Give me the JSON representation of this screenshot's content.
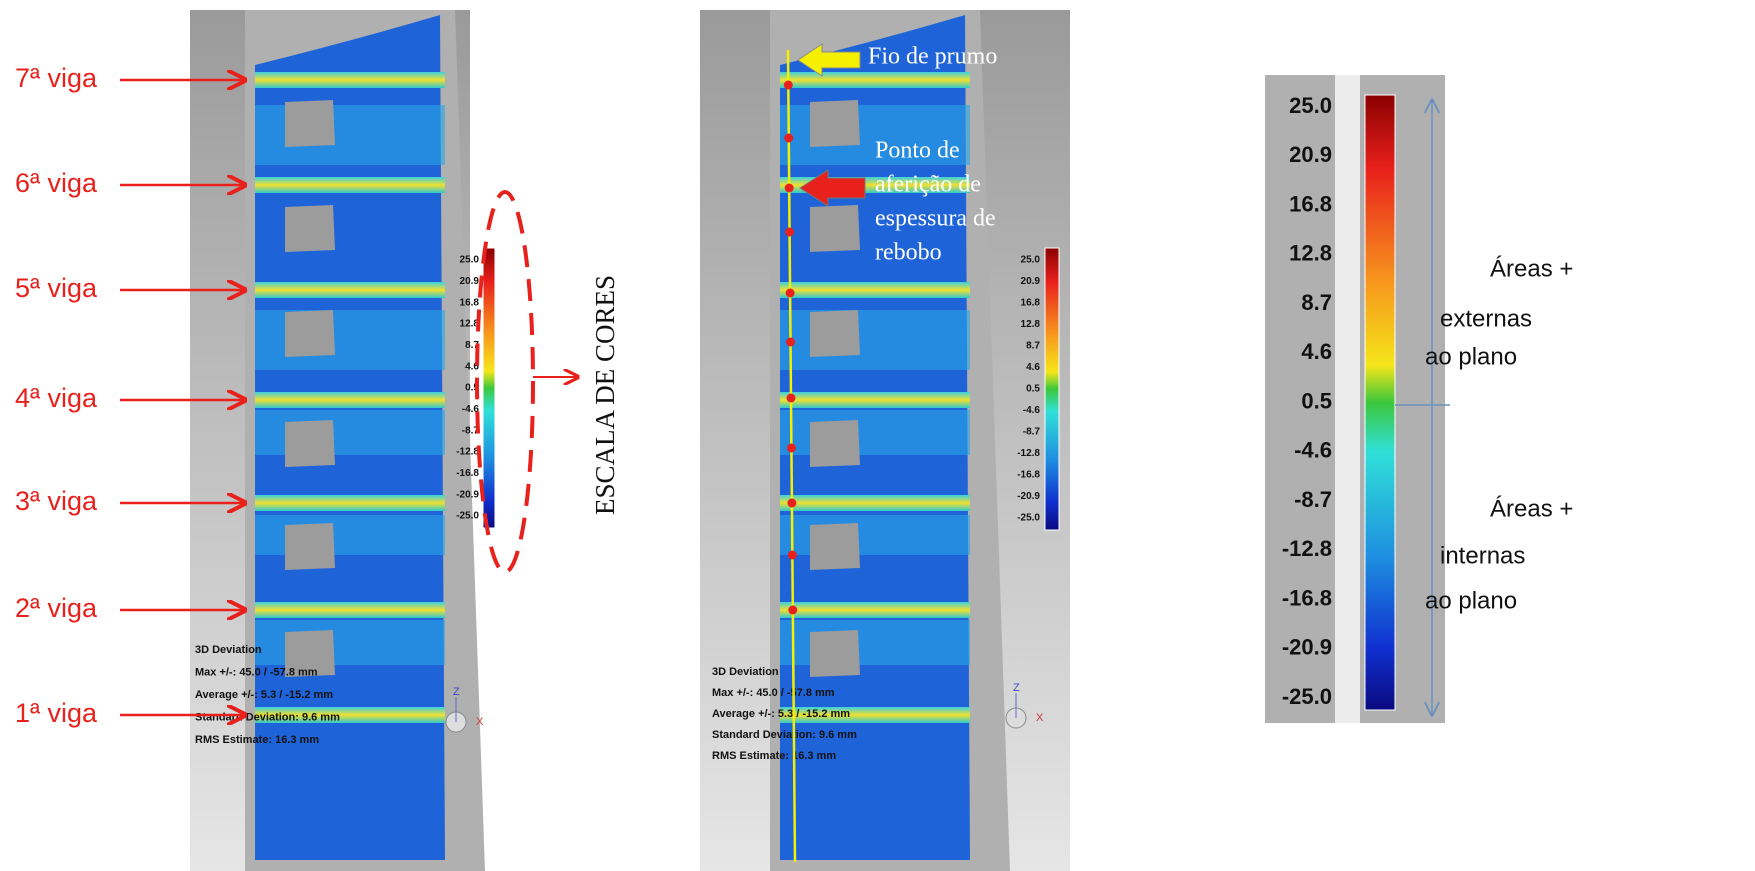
{
  "left_panel": {
    "beam_labels": [
      "7ª viga",
      "6ª viga",
      "5ª viga",
      "4ª viga",
      "3ª viga",
      "2ª viga",
      "1ª viga"
    ],
    "scale_labels": [
      "25.0",
      "20.9",
      "16.8",
      "12.8",
      "8.7",
      "4.6",
      "0.5",
      "-4.6",
      "-8.7",
      "-12.8",
      "-16.8",
      "-20.9",
      "-25.0"
    ],
    "caption": [
      "3D Deviation",
      "Max +/-: 45.0 / -57.8 mm",
      "Average +/-: 5.3 / -15.2 mm",
      "Standard Deviation: 9.6 mm",
      "RMS Estimate: 16.3 mm"
    ],
    "axis_z": "Z",
    "axis_x": "X"
  },
  "scale_title": "ESCALA DE CORES",
  "middle_panel": {
    "plumb_line": "Fio de prumo",
    "measure_point": [
      "Ponto de",
      "aferição de",
      "espessura de",
      "rebobo"
    ],
    "scale_labels": [
      "25.0",
      "20.9",
      "16.8",
      "12.8",
      "8.7",
      "4.6",
      "0.5",
      "-4.6",
      "-8.7",
      "-12.8",
      "-16.8",
      "-20.9",
      "-25.0"
    ],
    "caption": [
      "3D Deviation",
      "Max +/-: 45.0 / -57.8 mm",
      "Average +/-: 5.3 / -15.2 mm",
      "Standard Deviation: 9.6 mm",
      "RMS Estimate: 16.3 mm"
    ],
    "axis_z": "Z",
    "axis_x": "X"
  },
  "right_panel": {
    "scale_labels": [
      "25.0",
      "20.9",
      "16.8",
      "12.8",
      "8.7",
      "4.6",
      "0.5",
      "-4.6",
      "-8.7",
      "-12.8",
      "-16.8",
      "-20.9",
      "-25.0"
    ],
    "external": [
      "Áreas +",
      "externas",
      "ao plano"
    ],
    "internal": [
      "Áreas +",
      "internas",
      "ao plano"
    ]
  }
}
